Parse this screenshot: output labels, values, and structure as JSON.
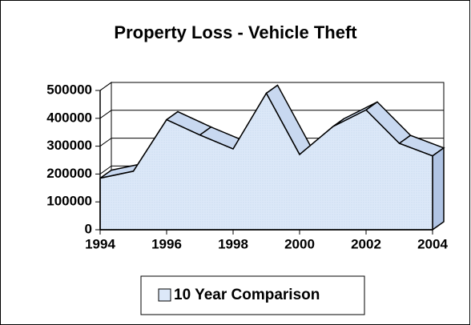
{
  "chart_data": {
    "type": "area",
    "title": "Property Loss - Vehicle Theft",
    "x": [
      1994,
      1995,
      1996,
      1997,
      1998,
      1999,
      2000,
      2001,
      2002,
      2003,
      2004
    ],
    "series": [
      {
        "name": "10 Year Comparison",
        "color": "#dce8f8",
        "values": [
          185000,
          210000,
          395000,
          340000,
          290000,
          490000,
          270000,
          370000,
          430000,
          310000,
          265000
        ]
      }
    ],
    "xlim": [
      1994,
      2004
    ],
    "xticks": [
      1994,
      1996,
      1998,
      2000,
      2002,
      2004
    ],
    "ylim": [
      0,
      500000
    ],
    "yticks": [
      0,
      100000,
      200000,
      300000,
      400000,
      500000
    ],
    "grid": true,
    "legend": "bottom"
  }
}
